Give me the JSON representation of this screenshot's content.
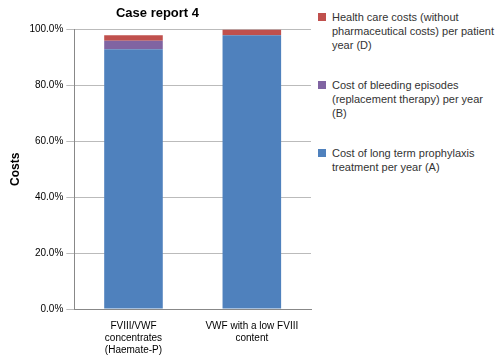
{
  "chart_data": {
    "type": "bar",
    "title": "Case report 4",
    "y_label": "Costs",
    "categories": [
      "FVIII/VWF concentrates (Haemate-P)",
      "VWF with a low FVIII content"
    ],
    "series": [
      {
        "name": "Cost of long term prophylaxis treatment per year (A)",
        "color": "#4f81bd",
        "values": [
          93,
          98
        ]
      },
      {
        "name": "Cost of bleeding episodes (replacement therapy) per year (B)",
        "color": "#8064a2",
        "values": [
          3,
          0
        ]
      },
      {
        "name": "Health care costs (without pharmaceutical costs) per patient year (D)",
        "color": "#c0504d",
        "values": [
          2,
          2
        ]
      }
    ],
    "stacked": true,
    "ylim": [
      0,
      100
    ],
    "yticks": [
      {
        "value": 0,
        "label": "0.0%"
      },
      {
        "value": 20,
        "label": "20.0%"
      },
      {
        "value": 40,
        "label": "40.0%"
      },
      {
        "value": 60,
        "label": "60.0%"
      },
      {
        "value": 80,
        "label": "80.0%"
      },
      {
        "value": 100,
        "label": "100.0%"
      }
    ],
    "grid": true,
    "legend": "right"
  }
}
